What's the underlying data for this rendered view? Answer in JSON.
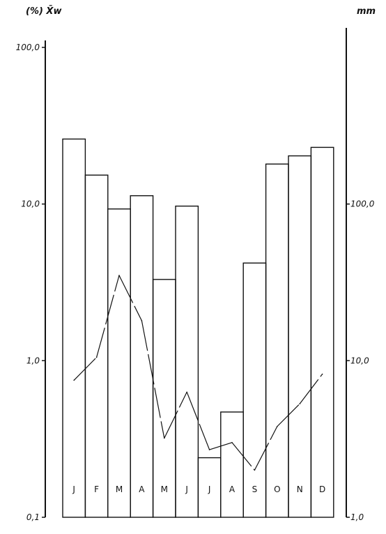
{
  "chart_data": {
    "type": "bar",
    "categories": [
      "J",
      "F",
      "M",
      "A",
      "M",
      "J",
      "J",
      "A",
      "S",
      "O",
      "N",
      "D"
    ],
    "series": [
      {
        "values": [
          26.0,
          15.3,
          9.3,
          11.3,
          3.3,
          9.7,
          0.24,
          0.47,
          4.2,
          18.0,
          20.3,
          23.0
        ],
        "axis": "left",
        "style": "bars"
      },
      {
        "values": [
          7.5,
          10.5,
          35.0,
          18.0,
          3.2,
          6.3,
          2.7,
          3.0,
          2.0,
          3.8,
          5.3,
          8.2
        ],
        "axis": "right",
        "style": "dashed-line"
      }
    ],
    "left_axis": {
      "title": "(%) X̄w",
      "scale": "log",
      "ylim": [
        0.1,
        100
      ],
      "ticks": [
        {
          "value": 100,
          "label": "100,0"
        },
        {
          "value": 10,
          "label": "10,0"
        },
        {
          "value": 1,
          "label": "1,0"
        },
        {
          "value": 0.1,
          "label": "0,1"
        }
      ]
    },
    "right_axis": {
      "title": "mm",
      "scale": "log",
      "ylim": [
        1,
        1000
      ],
      "ticks": [
        {
          "value": 100,
          "label": "100,0"
        },
        {
          "value": 10,
          "label": "10,0"
        },
        {
          "value": 1,
          "label": "1,0"
        }
      ]
    },
    "grid": false,
    "legend": "none"
  }
}
